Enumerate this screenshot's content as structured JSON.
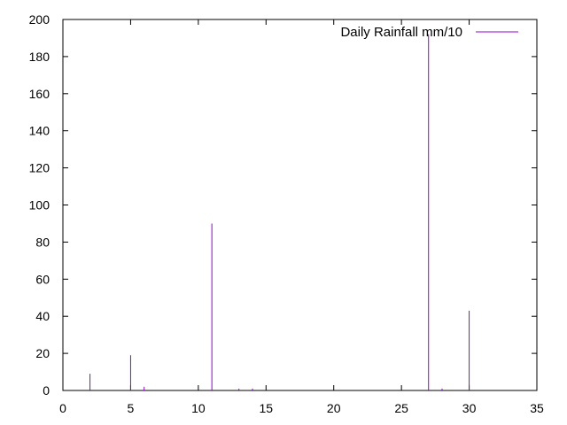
{
  "chart_data": {
    "type": "impulse",
    "xlim": [
      0,
      35
    ],
    "ylim": [
      0,
      200
    ],
    "xticks": [
      0,
      5,
      10,
      15,
      20,
      25,
      30,
      35
    ],
    "yticks": [
      0,
      20,
      40,
      60,
      80,
      100,
      120,
      140,
      160,
      180,
      200
    ],
    "legend_position": "top-right",
    "grid": false,
    "series": [
      {
        "name": "Daily Rainfall mm/10",
        "color": "#9400d3",
        "x": [
          2,
          5,
          6,
          11,
          13,
          14,
          27,
          28,
          30
        ],
        "y": [
          9,
          19,
          2,
          90,
          1,
          1,
          192,
          1,
          43
        ]
      }
    ]
  }
}
